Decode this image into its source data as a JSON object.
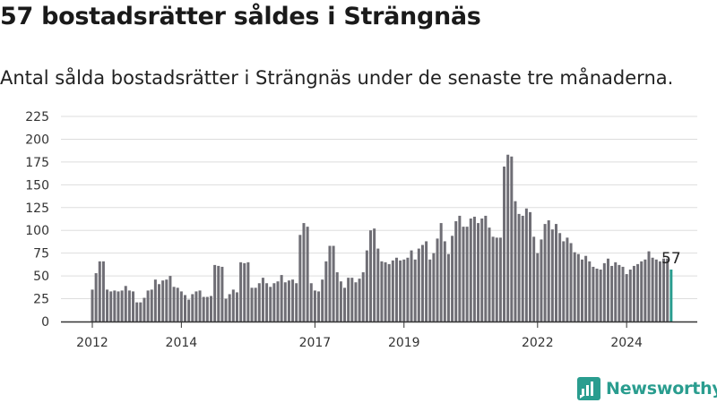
{
  "title": "57 bostadsrätter såldes i Strängnäs",
  "subtitle": "Antal sålda bostadsrätter i Strängnäs under de senaste tre månaderna.",
  "brand": {
    "name": "Newsworthy",
    "color": "#2a9d8f",
    "icon": "newsworthy-logo-icon"
  },
  "colors": {
    "bar": "#6f6e75",
    "highlight": "#2a9d8f",
    "grid": "#dddddd",
    "axis": "#333333"
  },
  "chart_data": {
    "type": "bar",
    "x_start": "2012-01",
    "x_unit": "month",
    "values": [
      35,
      53,
      66,
      66,
      35,
      33,
      34,
      33,
      34,
      39,
      34,
      33,
      21,
      21,
      26,
      34,
      35,
      46,
      41,
      45,
      46,
      50,
      38,
      37,
      33,
      29,
      24,
      30,
      33,
      34,
      27,
      27,
      28,
      62,
      61,
      60,
      25,
      30,
      35,
      32,
      65,
      64,
      65,
      37,
      37,
      42,
      48,
      42,
      38,
      42,
      44,
      51,
      43,
      45,
      46,
      42,
      95,
      108,
      104,
      42,
      34,
      33,
      46,
      66,
      83,
      83,
      54,
      44,
      37,
      48,
      48,
      43,
      47,
      54,
      78,
      100,
      102,
      80,
      66,
      65,
      63,
      67,
      70,
      67,
      68,
      70,
      78,
      68,
      80,
      84,
      88,
      68,
      75,
      91,
      108,
      88,
      74,
      94,
      110,
      116,
      104,
      104,
      113,
      115,
      108,
      113,
      116,
      103,
      93,
      92,
      92,
      170,
      183,
      181,
      132,
      118,
      116,
      124,
      120,
      93,
      75,
      90,
      107,
      111,
      101,
      107,
      97,
      88,
      92,
      86,
      76,
      74,
      68,
      72,
      66,
      60,
      58,
      57,
      64,
      69,
      61,
      65,
      62,
      60,
      52,
      57,
      61,
      63,
      66,
      68,
      77,
      70,
      68,
      66,
      69,
      69,
      57
    ],
    "highlight_last": true,
    "last_label": "57",
    "xticks": [
      "2012",
      "2014",
      "2017",
      "2019",
      "2022",
      "2024"
    ],
    "yticks": [
      0,
      25,
      50,
      75,
      100,
      125,
      150,
      175,
      200,
      225
    ],
    "ylim": [
      0,
      225
    ],
    "grid": true,
    "legend": "none"
  }
}
